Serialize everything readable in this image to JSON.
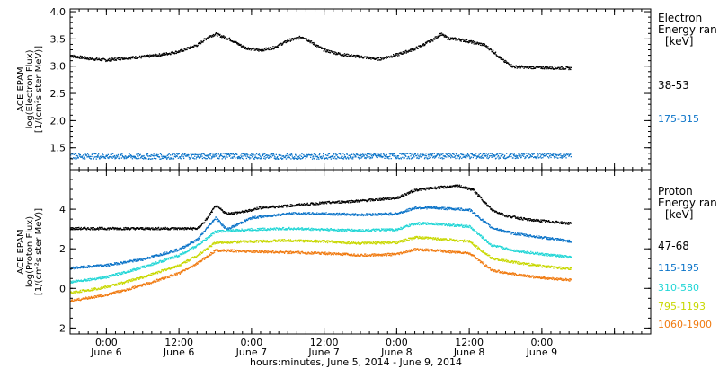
{
  "chart_data": [
    {
      "type": "scatter",
      "panel": "electron",
      "ylabel": [
        "ACE EPAM",
        "log(Electron Flux)",
        "[1/(cm²s ster MeV)]"
      ],
      "ylim": [
        1.1,
        4.05
      ],
      "yticks": [
        "1.5",
        "2.0",
        "2.5",
        "3.0",
        "3.5",
        "4.0"
      ],
      "legend": {
        "title": [
          "Electron",
          "Energy ran"
        ],
        "unit": "[keV]"
      },
      "series": [
        {
          "name": "38-53",
          "color": "#000000",
          "anchors": [
            [
              0.0,
              3.2
            ],
            [
              0.25,
              3.15
            ],
            [
              0.5,
              3.12
            ],
            [
              0.75,
              3.16
            ],
            [
              1.0,
              3.18
            ],
            [
              1.25,
              3.22
            ],
            [
              1.5,
              3.28
            ],
            [
              1.75,
              3.4
            ],
            [
              1.9,
              3.55
            ],
            [
              2.0,
              3.6
            ],
            [
              2.2,
              3.5
            ],
            [
              2.4,
              3.35
            ],
            [
              2.6,
              3.3
            ],
            [
              2.8,
              3.35
            ],
            [
              3.0,
              3.48
            ],
            [
              3.2,
              3.55
            ],
            [
              3.35,
              3.42
            ],
            [
              3.5,
              3.3
            ],
            [
              3.75,
              3.22
            ],
            [
              4.0,
              3.18
            ],
            [
              4.25,
              3.14
            ],
            [
              4.5,
              3.22
            ],
            [
              4.75,
              3.33
            ],
            [
              5.0,
              3.5
            ],
            [
              5.1,
              3.6
            ],
            [
              5.2,
              3.52
            ],
            [
              5.35,
              3.5
            ],
            [
              5.5,
              3.46
            ],
            [
              5.7,
              3.4
            ],
            [
              5.85,
              3.25
            ],
            [
              5.95,
              3.12
            ],
            [
              6.1,
              3.0
            ],
            [
              6.3,
              2.99
            ],
            [
              6.6,
              2.98
            ],
            [
              6.9,
              2.97
            ]
          ]
        },
        {
          "name": "175-315",
          "color": "#0a73c8",
          "anchors": [
            [
              0.0,
              1.36
            ],
            [
              1.0,
              1.35
            ],
            [
              2.0,
              1.36
            ],
            [
              3.0,
              1.35
            ],
            [
              4.0,
              1.36
            ],
            [
              5.0,
              1.36
            ],
            [
              6.0,
              1.36
            ],
            [
              6.9,
              1.37
            ]
          ]
        }
      ]
    },
    {
      "type": "scatter",
      "panel": "proton",
      "ylabel": [
        "ACE EPAM",
        "log(Proton Flux)",
        "[1/(cm²s ster MeV)]"
      ],
      "ylim": [
        -2.3,
        6.0
      ],
      "yticks": [
        "-2",
        "0",
        "2",
        "4"
      ],
      "legend": {
        "title": [
          "Proton",
          "Energy ran"
        ],
        "unit": "[keV]"
      },
      "series": [
        {
          "name": "47-68",
          "color": "#000000",
          "anchors": [
            [
              0.0,
              3.05
            ],
            [
              1.0,
              3.05
            ],
            [
              1.75,
              3.05
            ],
            [
              1.85,
              3.4
            ],
            [
              2.0,
              4.2
            ],
            [
              2.15,
              3.8
            ],
            [
              2.4,
              3.9
            ],
            [
              2.6,
              4.1
            ],
            [
              3.0,
              4.2
            ],
            [
              3.5,
              4.35
            ],
            [
              4.0,
              4.45
            ],
            [
              4.5,
              4.6
            ],
            [
              4.75,
              5.0
            ],
            [
              5.0,
              5.1
            ],
            [
              5.35,
              5.2
            ],
            [
              5.55,
              5.0
            ],
            [
              5.8,
              4.0
            ],
            [
              6.0,
              3.7
            ],
            [
              6.3,
              3.5
            ],
            [
              6.9,
              3.3
            ]
          ]
        },
        {
          "name": "115-195",
          "color": "#0a73c8",
          "anchors": [
            [
              0.0,
              1.05
            ],
            [
              0.5,
              1.2
            ],
            [
              1.0,
              1.5
            ],
            [
              1.5,
              2.0
            ],
            [
              1.75,
              2.5
            ],
            [
              2.0,
              3.6
            ],
            [
              2.15,
              3.0
            ],
            [
              2.5,
              3.6
            ],
            [
              3.0,
              3.8
            ],
            [
              3.5,
              3.8
            ],
            [
              4.0,
              3.75
            ],
            [
              4.5,
              3.8
            ],
            [
              4.75,
              4.1
            ],
            [
              5.0,
              4.1
            ],
            [
              5.5,
              4.0
            ],
            [
              5.8,
              3.1
            ],
            [
              6.1,
              2.8
            ],
            [
              6.5,
              2.6
            ],
            [
              6.9,
              2.4
            ]
          ]
        },
        {
          "name": "310-580",
          "color": "#22d6d6",
          "anchors": [
            [
              0.0,
              0.35
            ],
            [
              0.5,
              0.6
            ],
            [
              1.0,
              1.1
            ],
            [
              1.5,
              1.7
            ],
            [
              1.75,
              2.2
            ],
            [
              2.0,
              2.9
            ],
            [
              2.5,
              3.0
            ],
            [
              3.0,
              3.05
            ],
            [
              3.5,
              3.0
            ],
            [
              4.0,
              2.95
            ],
            [
              4.5,
              3.0
            ],
            [
              4.75,
              3.3
            ],
            [
              5.0,
              3.3
            ],
            [
              5.5,
              3.15
            ],
            [
              5.8,
              2.2
            ],
            [
              6.1,
              1.95
            ],
            [
              6.5,
              1.75
            ],
            [
              6.9,
              1.6
            ]
          ]
        },
        {
          "name": "795-1193",
          "color": "#c8d800",
          "anchors": [
            [
              0.0,
              -0.2
            ],
            [
              0.5,
              0.1
            ],
            [
              1.0,
              0.6
            ],
            [
              1.5,
              1.2
            ],
            [
              1.75,
              1.7
            ],
            [
              2.0,
              2.35
            ],
            [
              2.5,
              2.4
            ],
            [
              3.0,
              2.45
            ],
            [
              3.5,
              2.4
            ],
            [
              4.0,
              2.3
            ],
            [
              4.5,
              2.35
            ],
            [
              4.75,
              2.6
            ],
            [
              5.0,
              2.55
            ],
            [
              5.5,
              2.4
            ],
            [
              5.8,
              1.55
            ],
            [
              6.1,
              1.35
            ],
            [
              6.5,
              1.15
            ],
            [
              6.9,
              1.0
            ]
          ]
        },
        {
          "name": "1060-1900",
          "color": "#f07a10",
          "anchors": [
            [
              0.0,
              -0.6
            ],
            [
              0.5,
              -0.3
            ],
            [
              1.0,
              0.2
            ],
            [
              1.5,
              0.8
            ],
            [
              1.75,
              1.3
            ],
            [
              2.0,
              1.95
            ],
            [
              2.5,
              1.9
            ],
            [
              3.0,
              1.85
            ],
            [
              3.5,
              1.8
            ],
            [
              4.0,
              1.7
            ],
            [
              4.5,
              1.75
            ],
            [
              4.75,
              2.0
            ],
            [
              5.0,
              1.95
            ],
            [
              5.5,
              1.8
            ],
            [
              5.8,
              0.95
            ],
            [
              6.1,
              0.75
            ],
            [
              6.5,
              0.55
            ],
            [
              6.9,
              0.45
            ]
          ]
        }
      ]
    }
  ],
  "xaxis": {
    "ticks": [
      {
        "time": "0:00",
        "date": "June 6"
      },
      {
        "time": "12:00",
        "date": "June 6"
      },
      {
        "time": "0:00",
        "date": "June 7"
      },
      {
        "time": "12:00",
        "date": "June 7"
      },
      {
        "time": "0:00",
        "date": "June 8"
      },
      {
        "time": "12:00",
        "date": "June 8"
      },
      {
        "time": "0:00",
        "date": "June 9"
      }
    ],
    "label": "hours:minutes, June  5, 2014 - June  9, 2014"
  }
}
